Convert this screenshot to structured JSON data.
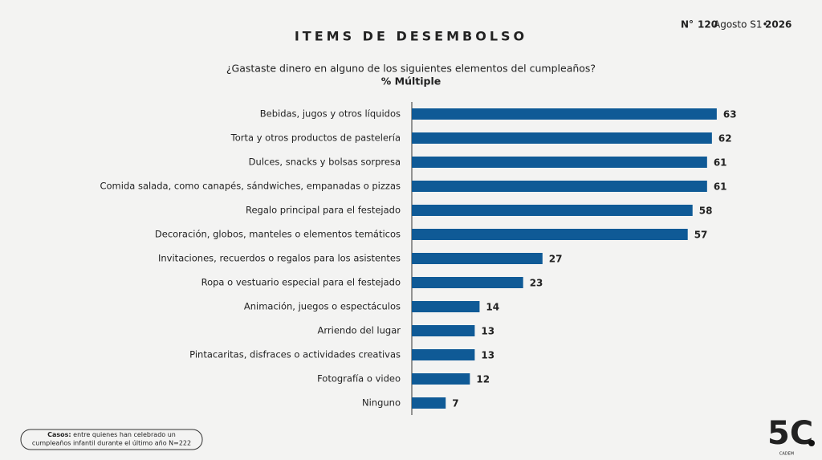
{
  "header": {
    "issue": "N°",
    "number": "120",
    "period": "Agosto S1•",
    "year": "2026"
  },
  "chart_data": {
    "type": "bar",
    "orientation": "horizontal",
    "title": "ITEMS DE DESEMBOLSO",
    "subtitle": "¿Gastaste dinero en alguno de los siguientes elementos del cumpleaños?",
    "subtitle2": "% Múltiple",
    "categories": [
      "Bebidas, jugos y otros líquidos",
      "Torta y otros productos de pastelería",
      "Dulces, snacks y bolsas sorpresa",
      "Comida salada, como canapés, sándwiches, empanadas o pizzas",
      "Regalo principal para el festejado",
      "Decoración, globos, manteles o elementos temáticos",
      "Invitaciones, recuerdos o regalos para los asistentes",
      "Ropa o vestuario especial para el festejado",
      "Animación, juegos o espectáculos",
      "Arriendo del lugar",
      "Pintacaritas, disfraces o actividades creativas",
      "Fotografía o video",
      "Ninguno"
    ],
    "values": [
      63,
      62,
      61,
      61,
      58,
      57,
      27,
      23,
      14,
      13,
      13,
      12,
      7
    ],
    "color": "#0f5a96",
    "xlim": [
      0,
      100
    ]
  },
  "footnote": {
    "label": "Casos:",
    "text1": "entre quienes han celebrado un",
    "text2": "cumpleaños infantil durante el último año N=222"
  },
  "logo": {
    "mark": "5C",
    "name": "CADEM"
  }
}
